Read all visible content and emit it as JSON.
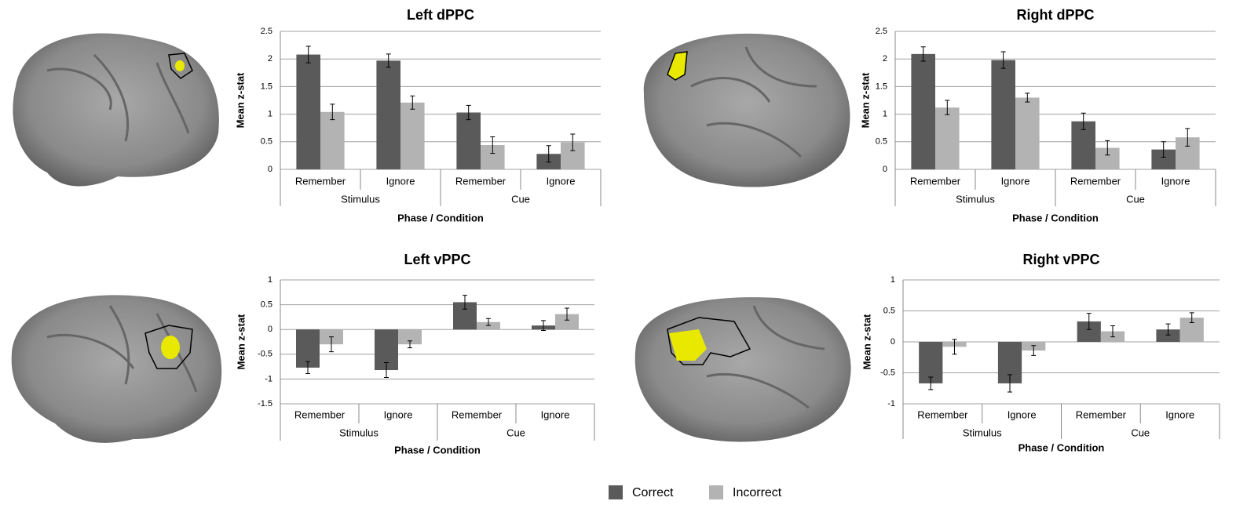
{
  "chart_data": [
    {
      "type": "bar",
      "title": "Left dPPC",
      "ylabel": "Mean z-stat",
      "xlabel": "Phase / Condition",
      "groups": [
        {
          "name": "Stimulus",
          "categories": [
            "Remember",
            "Ignore"
          ]
        },
        {
          "name": "Cue",
          "categories": [
            "Remember",
            "Ignore"
          ]
        }
      ],
      "series": [
        {
          "name": "Correct",
          "color": "#5a5a5a",
          "values": [
            2.08,
            1.97,
            1.03,
            0.28
          ],
          "errors": [
            0.15,
            0.12,
            0.13,
            0.15
          ]
        },
        {
          "name": "Incorrect",
          "color": "#b3b3b3",
          "values": [
            1.04,
            1.21,
            0.44,
            0.49
          ],
          "errors": [
            0.14,
            0.12,
            0.15,
            0.15
          ]
        }
      ],
      "ylim": [
        0,
        2.5
      ],
      "yticks": [
        0,
        0.5,
        1,
        1.5,
        2,
        2.5
      ],
      "grid": true
    },
    {
      "type": "bar",
      "title": "Right dPPC",
      "ylabel": "Mean z-stat",
      "xlabel": "Phase / Condition",
      "groups": [
        {
          "name": "Stimulus",
          "categories": [
            "Remember",
            "Ignore"
          ]
        },
        {
          "name": "Cue",
          "categories": [
            "Remember",
            "Ignore"
          ]
        }
      ],
      "series": [
        {
          "name": "Correct",
          "color": "#5a5a5a",
          "values": [
            2.09,
            1.98,
            0.87,
            0.36
          ],
          "errors": [
            0.13,
            0.15,
            0.15,
            0.14
          ]
        },
        {
          "name": "Incorrect",
          "color": "#b3b3b3",
          "values": [
            1.12,
            1.3,
            0.39,
            0.58
          ],
          "errors": [
            0.13,
            0.08,
            0.13,
            0.16
          ]
        }
      ],
      "ylim": [
        0,
        2.5
      ],
      "yticks": [
        0,
        0.5,
        1,
        1.5,
        2,
        2.5
      ],
      "grid": true
    },
    {
      "type": "bar",
      "title": "Left vPPC",
      "ylabel": "Mean z-stat",
      "xlabel": "Phase / Condition",
      "groups": [
        {
          "name": "Stimulus",
          "categories": [
            "Remember",
            "Ignore"
          ]
        },
        {
          "name": "Cue",
          "categories": [
            "Remember",
            "Ignore"
          ]
        }
      ],
      "series": [
        {
          "name": "Correct",
          "color": "#5a5a5a",
          "values": [
            -0.77,
            -0.82,
            0.55,
            0.08
          ],
          "errors": [
            0.12,
            0.15,
            0.14,
            0.1
          ]
        },
        {
          "name": "Incorrect",
          "color": "#b3b3b3",
          "values": [
            -0.3,
            -0.3,
            0.15,
            0.31
          ],
          "errors": [
            0.15,
            0.07,
            0.07,
            0.12
          ]
        }
      ],
      "ylim": [
        -1.5,
        1
      ],
      "yticks": [
        -1.5,
        -1,
        -0.5,
        0,
        0.5,
        1
      ],
      "grid": true
    },
    {
      "type": "bar",
      "title": "Right vPPC",
      "ylabel": "Mean z-stat",
      "xlabel": "Phase / Condition",
      "groups": [
        {
          "name": "Stimulus",
          "categories": [
            "Remember",
            "Ignore"
          ]
        },
        {
          "name": "Cue",
          "categories": [
            "Remember",
            "Ignore"
          ]
        }
      ],
      "series": [
        {
          "name": "Correct",
          "color": "#5a5a5a",
          "values": [
            -0.67,
            -0.67,
            0.33,
            0.2
          ],
          "errors": [
            0.1,
            0.14,
            0.13,
            0.09
          ]
        },
        {
          "name": "Incorrect",
          "color": "#b3b3b3",
          "values": [
            -0.08,
            -0.14,
            0.17,
            0.39
          ],
          "errors": [
            0.12,
            0.08,
            0.09,
            0.08
          ]
        }
      ],
      "ylim": [
        -1,
        1
      ],
      "yticks": [
        -1,
        -0.5,
        0,
        0.5,
        1
      ],
      "grid": true
    }
  ]
}
